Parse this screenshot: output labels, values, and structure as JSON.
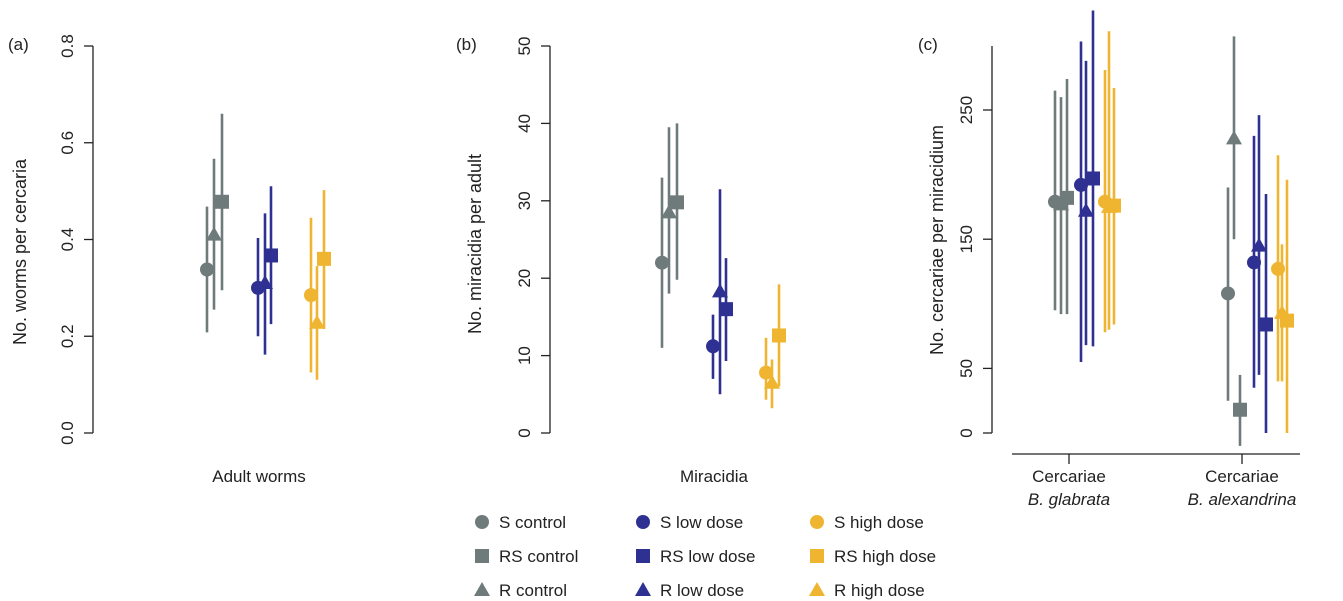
{
  "colors": {
    "control": "#6f7a7a",
    "low_dose": "#2e3192",
    "high_dose": "#efb531"
  },
  "chart_data": [
    {
      "type": "scatter",
      "panel_label": "(a)",
      "ylabel": "No. worms per cercaria",
      "categories": [
        "Adult worms"
      ],
      "ylim": [
        0,
        0.8
      ],
      "yticks": [
        "0.0",
        "0.2",
        "0.4",
        "0.6",
        "0.8"
      ],
      "series": [
        {
          "name": "S control",
          "values": [
            0.338
          ],
          "lower": [
            0.208
          ],
          "upper": [
            0.468
          ]
        },
        {
          "name": "R control",
          "values": [
            0.41
          ],
          "lower": [
            0.255
          ],
          "upper": [
            0.567
          ]
        },
        {
          "name": "RS control",
          "values": [
            0.478
          ],
          "lower": [
            0.295
          ],
          "upper": [
            0.66
          ]
        },
        {
          "name": "S low dose",
          "values": [
            0.3
          ],
          "lower": [
            0.2
          ],
          "upper": [
            0.403
          ]
        },
        {
          "name": "R low dose",
          "values": [
            0.31
          ],
          "lower": [
            0.162
          ],
          "upper": [
            0.454
          ]
        },
        {
          "name": "RS low dose",
          "values": [
            0.367
          ],
          "lower": [
            0.225
          ],
          "upper": [
            0.51
          ]
        },
        {
          "name": "S high dose",
          "values": [
            0.285
          ],
          "lower": [
            0.125
          ],
          "upper": [
            0.445
          ]
        },
        {
          "name": "R high dose",
          "values": [
            0.228
          ],
          "lower": [
            0.11
          ],
          "upper": [
            0.345
          ]
        },
        {
          "name": "RS high dose",
          "values": [
            0.36
          ],
          "lower": [
            0.215
          ],
          "upper": [
            0.502
          ]
        }
      ]
    },
    {
      "type": "scatter",
      "panel_label": "(b)",
      "ylabel": "No. miracidia per adult",
      "categories": [
        "Miracidia"
      ],
      "ylim": [
        0,
        50
      ],
      "yticks": [
        "0",
        "10",
        "20",
        "30",
        "40",
        "50"
      ],
      "series": [
        {
          "name": "S control",
          "values": [
            22
          ],
          "lower": [
            11
          ],
          "upper": [
            33
          ]
        },
        {
          "name": "R control",
          "values": [
            28.5
          ],
          "lower": [
            18
          ],
          "upper": [
            39.5
          ]
        },
        {
          "name": "RS control",
          "values": [
            29.8
          ],
          "lower": [
            19.8
          ],
          "upper": [
            40
          ]
        },
        {
          "name": "S low dose",
          "values": [
            11.2
          ],
          "lower": [
            7
          ],
          "upper": [
            15.3
          ]
        },
        {
          "name": "R low dose",
          "values": [
            18.3
          ],
          "lower": [
            5
          ],
          "upper": [
            31.5
          ]
        },
        {
          "name": "RS low dose",
          "values": [
            16
          ],
          "lower": [
            9.3
          ],
          "upper": [
            22.6
          ]
        },
        {
          "name": "S high dose",
          "values": [
            7.8
          ],
          "lower": [
            4.3
          ],
          "upper": [
            12.3
          ]
        },
        {
          "name": "R high dose",
          "values": [
            6.5
          ],
          "lower": [
            3.2
          ],
          "upper": [
            9.5
          ]
        },
        {
          "name": "RS high dose",
          "values": [
            12.6
          ],
          "lower": [
            6
          ],
          "upper": [
            19.2
          ]
        }
      ]
    },
    {
      "type": "scatter",
      "panel_label": "(c)",
      "ylabel": "No. cercariae per miracidium",
      "categories": [
        "Cercariae",
        "Cercariae"
      ],
      "category_species": [
        "B. glabrata",
        "B. alexandrina"
      ],
      "ylim": [
        -20,
        300
      ],
      "yticks": [
        "0",
        "50",
        "150",
        "250"
      ],
      "ytick_values": [
        0,
        50,
        150,
        250
      ],
      "series": [
        {
          "name": "S control",
          "values": [
            179,
            108
          ],
          "lower": [
            95,
            25
          ],
          "upper": [
            265,
            190
          ]
        },
        {
          "name": "R control",
          "values": [
            177,
            228
          ],
          "lower": [
            92,
            150
          ],
          "upper": [
            260,
            307
          ]
        },
        {
          "name": "RS control",
          "values": [
            182,
            18
          ],
          "lower": [
            92,
            -10
          ],
          "upper": [
            274,
            45
          ]
        },
        {
          "name": "S low dose",
          "values": [
            192,
            132
          ],
          "lower": [
            55,
            35
          ],
          "upper": [
            303,
            230
          ]
        },
        {
          "name": "R low dose",
          "values": [
            172,
            145
          ],
          "lower": [
            68,
            45
          ],
          "upper": [
            288,
            246
          ]
        },
        {
          "name": "RS low dose",
          "values": [
            197,
            84
          ],
          "lower": [
            67,
            0
          ],
          "upper": [
            327,
            185
          ]
        },
        {
          "name": "S high dose",
          "values": [
            179,
            127
          ],
          "lower": [
            78,
            40
          ],
          "upper": [
            281,
            215
          ]
        },
        {
          "name": "R high dose",
          "values": [
            175,
            93
          ],
          "lower": [
            80,
            40
          ],
          "upper": [
            311,
            146
          ]
        },
        {
          "name": "RS high dose",
          "values": [
            176,
            87
          ],
          "lower": [
            84,
            0
          ],
          "upper": [
            267,
            196
          ]
        }
      ]
    }
  ],
  "legend": [
    {
      "label": "S control",
      "shape": "circle",
      "group": "control"
    },
    {
      "label": "RS control",
      "shape": "square",
      "group": "control"
    },
    {
      "label": "R control",
      "shape": "triangle",
      "group": "control"
    },
    {
      "label": "S low dose",
      "shape": "circle",
      "group": "low_dose"
    },
    {
      "label": "RS low dose",
      "shape": "square",
      "group": "low_dose"
    },
    {
      "label": "R low dose",
      "shape": "triangle",
      "group": "low_dose"
    },
    {
      "label": "S high dose",
      "shape": "circle",
      "group": "high_dose"
    },
    {
      "label": "RS high dose",
      "shape": "square",
      "group": "high_dose"
    },
    {
      "label": "R high dose",
      "shape": "triangle",
      "group": "high_dose"
    }
  ]
}
